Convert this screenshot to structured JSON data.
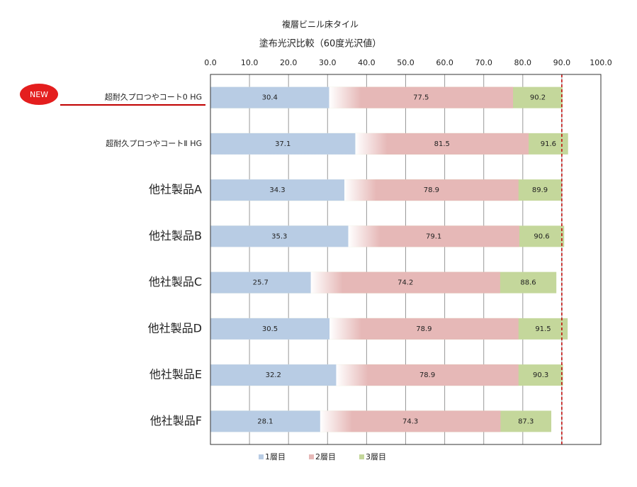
{
  "chart_data": {
    "type": "overlap-bar",
    "title": "複層ビニル床タイル",
    "subtitle": "塗布光沢比較（60度光沢値）",
    "annotation": "NEW",
    "categories": [
      "超耐久プロつやコート0 HG",
      "超耐久プロつやコートⅡ HG",
      "他社製品A",
      "他社製品B",
      "他社製品C",
      "他社製品D",
      "他社製品E",
      "他社製品F"
    ],
    "series": [
      {
        "name": "1層目",
        "color": "#b8cce4",
        "values": [
          30.4,
          37.1,
          34.3,
          35.3,
          25.7,
          30.5,
          32.2,
          28.1
        ]
      },
      {
        "name": "2層目",
        "color": "#e6b8b7",
        "values": [
          77.5,
          81.5,
          78.9,
          79.1,
          74.2,
          78.9,
          78.9,
          74.3
        ]
      },
      {
        "name": "3層目",
        "color": "#c4d79b",
        "values": [
          90.2,
          91.6,
          89.9,
          90.6,
          88.6,
          91.5,
          90.3,
          87.3
        ]
      }
    ],
    "reference_line": 90,
    "reference_color": "#c00000",
    "xlim": [
      0,
      100
    ],
    "xticks": [
      {
        "value": 0,
        "label": "0.0"
      },
      {
        "value": 10,
        "label": "10.0"
      },
      {
        "value": 20,
        "label": "20.0"
      },
      {
        "value": 30,
        "label": "30.0"
      },
      {
        "value": 40,
        "label": "40.0"
      },
      {
        "value": 50,
        "label": "50.0"
      },
      {
        "value": 60,
        "label": "60.0"
      },
      {
        "value": 70,
        "label": "70.0"
      },
      {
        "value": 80,
        "label": "80.0"
      },
      {
        "value": 90,
        "label": "90.0"
      },
      {
        "value": 100,
        "label": "100.0"
      }
    ],
    "grid": true,
    "legend": "bottom"
  }
}
